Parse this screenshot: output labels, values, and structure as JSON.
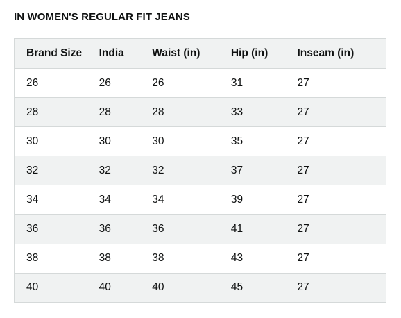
{
  "title": "IN WOMEN'S REGULAR FIT JEANS",
  "table": {
    "headers": [
      "Brand Size",
      "India",
      "Waist (in)",
      "Hip (in)",
      "Inseam (in)"
    ],
    "rows": [
      [
        "26",
        "26",
        "26",
        "31",
        "27"
      ],
      [
        "28",
        "28",
        "28",
        "33",
        "27"
      ],
      [
        "30",
        "30",
        "30",
        "35",
        "27"
      ],
      [
        "32",
        "32",
        "32",
        "37",
        "27"
      ],
      [
        "34",
        "34",
        "34",
        "39",
        "27"
      ],
      [
        "36",
        "36",
        "36",
        "41",
        "27"
      ],
      [
        "38",
        "38",
        "38",
        "43",
        "27"
      ],
      [
        "40",
        "40",
        "40",
        "45",
        "27"
      ]
    ]
  },
  "colors": {
    "stripe": "#f0f2f2",
    "border": "#d5d9d9",
    "text": "#0f1111"
  }
}
